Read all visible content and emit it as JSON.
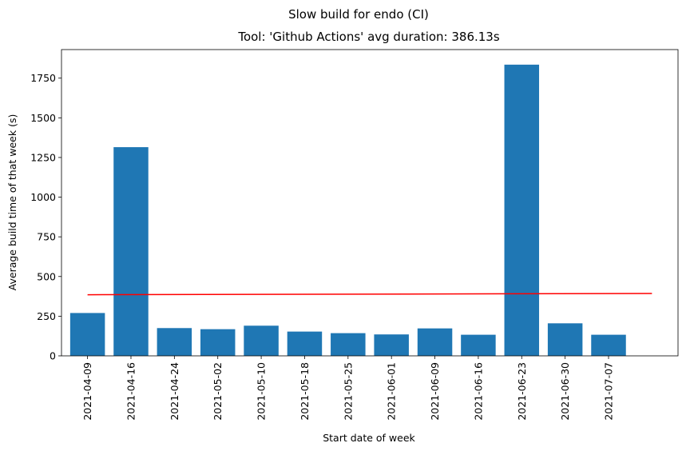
{
  "chart_data": {
    "type": "bar",
    "suptitle": "Slow build for endo (CI)",
    "title": "Tool: 'Github Actions' avg duration: 386.13s",
    "xlabel": "Start date of week",
    "ylabel": "Average build time of that week (s)",
    "categories": [
      "2021-04-09",
      "2021-04-16",
      "2021-04-24",
      "2021-05-02",
      "2021-05-10",
      "2021-05-18",
      "2021-05-25",
      "2021-06-01",
      "2021-06-09",
      "2021-06-16",
      "2021-06-23",
      "2021-06-30",
      "2021-07-07"
    ],
    "values": [
      270,
      1315,
      175,
      168,
      190,
      153,
      143,
      135,
      173,
      133,
      1835,
      205,
      133
    ],
    "yticks": [
      0,
      250,
      500,
      750,
      1000,
      1250,
      1500,
      1750
    ],
    "ylim": [
      0,
      1930
    ],
    "trend_line": {
      "start": 385,
      "end": 393
    },
    "bar_color": "#1f77b4",
    "trend_color": "#ff0000",
    "grid": false
  }
}
